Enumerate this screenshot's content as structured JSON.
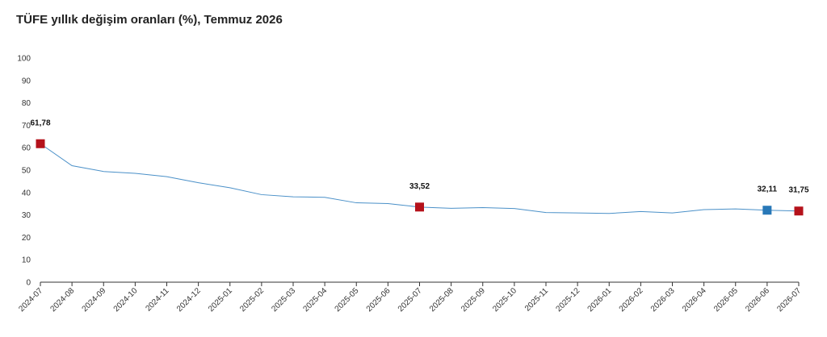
{
  "chart_data": {
    "type": "line",
    "title": "TÜFE yıllık değişim oranları (%), Temmuz 2026",
    "xlabel": "",
    "ylabel": "",
    "ylim": [
      0,
      100
    ],
    "yticks": [
      0,
      10,
      20,
      30,
      40,
      50,
      60,
      70,
      80,
      90,
      100
    ],
    "grid": false,
    "line_color": "#4a90c8",
    "categories": [
      "2024-07",
      "2024-08",
      "2024-09",
      "2024-10",
      "2024-11",
      "2024-12",
      "2025-01",
      "2025-02",
      "2025-03",
      "2025-04",
      "2025-05",
      "2025-06",
      "2025-07",
      "2025-08",
      "2025-09",
      "2025-10",
      "2025-11",
      "2025-12",
      "2026-01",
      "2026-02",
      "2026-03",
      "2026-04",
      "2026-05",
      "2026-06",
      "2026-07"
    ],
    "series": [
      {
        "values": [
          61.78,
          51.97,
          49.38,
          48.58,
          47.09,
          44.38,
          42.12,
          39.05,
          38.1,
          37.86,
          35.41,
          35.05,
          33.52,
          32.95,
          33.29,
          32.87,
          31.07,
          30.89,
          30.65,
          31.53,
          30.87,
          32.37,
          32.67,
          32.11,
          31.75
        ]
      }
    ],
    "markers": [
      {
        "index": 0,
        "label": "61,78",
        "color": "#b5121b"
      },
      {
        "index": 12,
        "label": "33,52",
        "color": "#b5121b"
      },
      {
        "index": 23,
        "label": "32,11",
        "color": "#2878b8"
      },
      {
        "index": 24,
        "label": "31,75",
        "color": "#b5121b"
      }
    ]
  }
}
